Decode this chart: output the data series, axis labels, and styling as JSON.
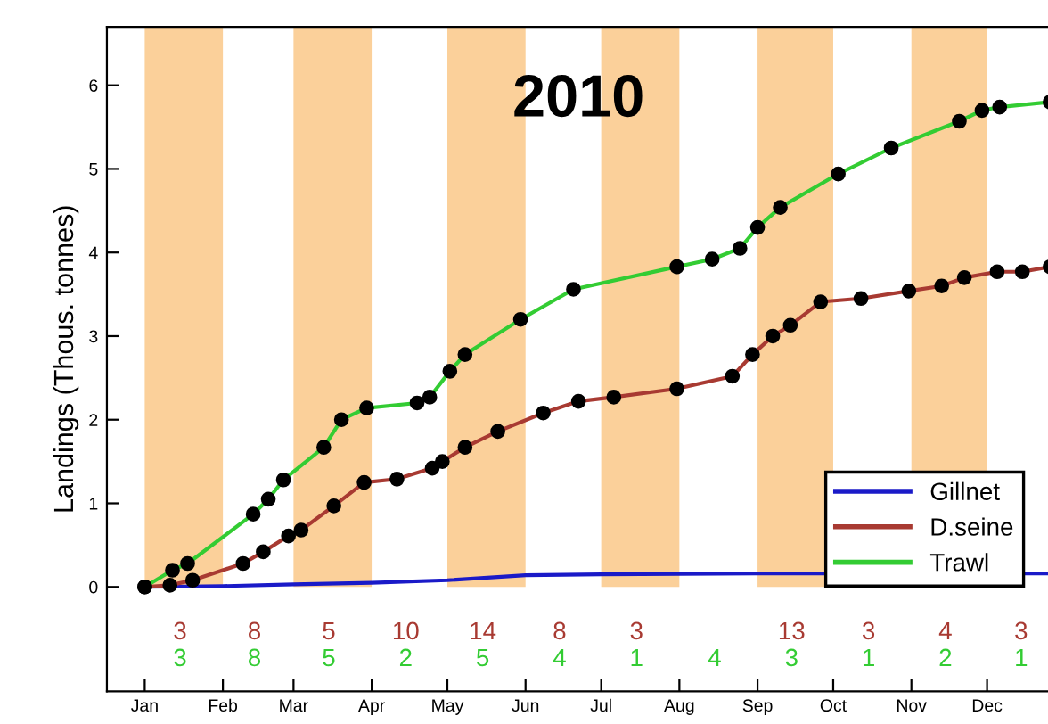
{
  "chart_data": {
    "type": "line",
    "title": "2010",
    "ylabel": "Landings (Thous. tonnes)",
    "xlim": [
      "2009-12-17",
      "2010-12-26"
    ],
    "ylim": [
      -1.25,
      6.7
    ],
    "yticks": [
      0,
      1,
      2,
      3,
      4,
      5,
      6
    ],
    "xticks": [
      {
        "value": "2010-01-01",
        "label": "Jan"
      },
      {
        "value": "2010-02-01",
        "label": "Feb"
      },
      {
        "value": "2010-03-01",
        "label": "Mar"
      },
      {
        "value": "2010-04-01",
        "label": "Apr"
      },
      {
        "value": "2010-05-01",
        "label": "May"
      },
      {
        "value": "2010-06-01",
        "label": "Jun"
      },
      {
        "value": "2010-07-01",
        "label": "Jul"
      },
      {
        "value": "2010-08-01",
        "label": "Aug"
      },
      {
        "value": "2010-09-01",
        "label": "Sep"
      },
      {
        "value": "2010-10-01",
        "label": "Oct"
      },
      {
        "value": "2010-11-01",
        "label": "Nov"
      },
      {
        "value": "2010-12-01",
        "label": "Dec"
      }
    ],
    "grid": false,
    "legend": "bottom right",
    "series": [
      {
        "name": "Gillnet",
        "color": "#1a1ac8",
        "marker": "none",
        "x": [
          "2010-01-01",
          "2010-02-01",
          "2010-03-01",
          "2010-04-01",
          "2010-05-01",
          "2010-06-01",
          "2010-07-01",
          "2010-09-01",
          "2010-12-26"
        ],
        "values": [
          0,
          0.01,
          0.03,
          0.05,
          0.08,
          0.14,
          0.15,
          0.16,
          0.16
        ]
      },
      {
        "name": "D.seine",
        "color": "#a83a32",
        "marker": "circle",
        "x": [
          "2010-01-01",
          "2010-01-11",
          "2010-01-20",
          "2010-02-09",
          "2010-02-17",
          "2010-02-27",
          "2010-03-04",
          "2010-03-17",
          "2010-03-29",
          "2010-04-11",
          "2010-04-25",
          "2010-04-29",
          "2010-05-08",
          "2010-05-21",
          "2010-06-08",
          "2010-06-22",
          "2010-07-06",
          "2010-07-31",
          "2010-08-22",
          "2010-08-30",
          "2010-09-07",
          "2010-09-14",
          "2010-09-26",
          "2010-10-12",
          "2010-10-31",
          "2010-11-13",
          "2010-11-22",
          "2010-12-05",
          "2010-12-15",
          "2010-12-26"
        ],
        "values": [
          0,
          0.02,
          0.08,
          0.28,
          0.42,
          0.61,
          0.68,
          0.97,
          1.25,
          1.29,
          1.42,
          1.5,
          1.67,
          1.86,
          2.08,
          2.22,
          2.27,
          2.37,
          2.52,
          2.78,
          3.0,
          3.13,
          3.41,
          3.45,
          3.54,
          3.6,
          3.7,
          3.77,
          3.77,
          3.83
        ]
      },
      {
        "name": "Trawl",
        "color": "#33cc33",
        "marker": "circle",
        "x": [
          "2010-01-01",
          "2010-01-12",
          "2010-01-18",
          "2010-02-13",
          "2010-02-19",
          "2010-02-25",
          "2010-03-13",
          "2010-03-20",
          "2010-03-30",
          "2010-04-19",
          "2010-04-24",
          "2010-05-02",
          "2010-05-08",
          "2010-05-30",
          "2010-06-20",
          "2010-07-31",
          "2010-08-14",
          "2010-08-25",
          "2010-09-01",
          "2010-09-10",
          "2010-10-03",
          "2010-10-24",
          "2010-11-20",
          "2010-11-29",
          "2010-12-06",
          "2010-12-26"
        ],
        "values": [
          0,
          0.2,
          0.28,
          0.87,
          1.05,
          1.28,
          1.67,
          2.0,
          2.14,
          2.2,
          2.27,
          2.58,
          2.78,
          3.2,
          3.56,
          3.83,
          3.92,
          4.05,
          4.3,
          4.54,
          4.94,
          5.25,
          5.57,
          5.7,
          5.74,
          5.8
        ]
      }
    ],
    "bands": [
      {
        "axis": "x",
        "from": "2010-01-01",
        "to": "2010-02-01",
        "color": "#fbd09a"
      },
      {
        "axis": "x",
        "from": "2010-03-01",
        "to": "2010-04-01",
        "color": "#fbd09a"
      },
      {
        "axis": "x",
        "from": "2010-05-01",
        "to": "2010-06-01",
        "color": "#fbd09a"
      },
      {
        "axis": "x",
        "from": "2010-07-01",
        "to": "2010-08-01",
        "color": "#fbd09a"
      },
      {
        "axis": "x",
        "from": "2010-09-01",
        "to": "2010-10-01",
        "color": "#fbd09a"
      },
      {
        "axis": "x",
        "from": "2010-11-01",
        "to": "2010-12-01",
        "color": "#fbd09a"
      }
    ],
    "annotations": [
      "3",
      "3",
      "8",
      "8",
      "5",
      "5",
      "10",
      "2",
      "14",
      "5",
      "8",
      "4",
      "3",
      "1",
      "4",
      "13",
      "3",
      "3",
      "1",
      "4",
      "2",
      "3",
      "1"
    ]
  }
}
